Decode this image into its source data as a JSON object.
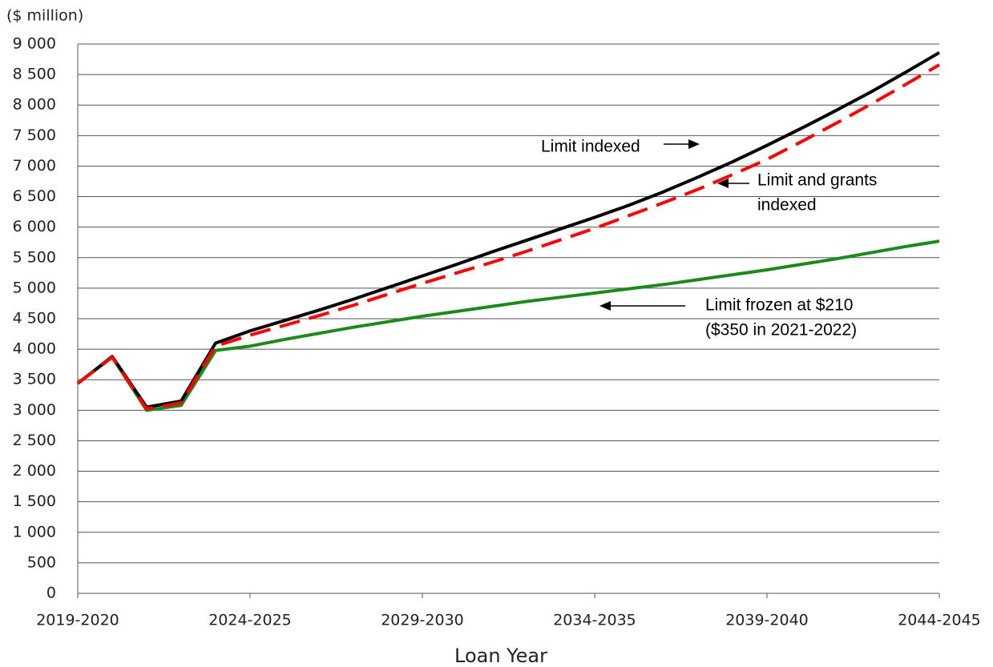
{
  "chart_data": {
    "type": "line",
    "y_label": "($ million)",
    "x_label": "Loan Year",
    "categories": [
      "2019-2020",
      null,
      null,
      null,
      null,
      "2024-2025",
      null,
      null,
      null,
      null,
      "2029-2030",
      null,
      null,
      null,
      null,
      "2034-2035",
      null,
      null,
      null,
      null,
      "2039-2040",
      null,
      null,
      null,
      null,
      "2044-2045"
    ],
    "ylim": [
      0,
      9000
    ],
    "yticks": [
      0,
      500,
      {
        "value": 1000,
        "label": "1 000"
      },
      {
        "value": 1500,
        "label": "1 500"
      },
      {
        "value": 2000,
        "label": "2 000"
      },
      {
        "value": 2500,
        "label": "2 500"
      },
      {
        "value": 3000,
        "label": "3 000"
      },
      {
        "value": 3500,
        "label": "3 500"
      },
      {
        "value": 4000,
        "label": "4 000"
      },
      {
        "value": 4500,
        "label": "4 500"
      },
      {
        "value": 5000,
        "label": "5 000"
      },
      {
        "value": 5500,
        "label": "5 500"
      },
      {
        "value": 6000,
        "label": "6 000"
      },
      {
        "value": 6500,
        "label": "6 500"
      },
      {
        "value": 7000,
        "label": "7 000"
      },
      {
        "value": 7500,
        "label": "7 500"
      },
      {
        "value": 8000,
        "label": "8 000"
      },
      {
        "value": 8500,
        "label": "8 500"
      },
      {
        "value": 9000,
        "label": "9 000"
      }
    ],
    "grid": true,
    "series": [
      {
        "color": "#1a8a1a",
        "dashed": false,
        "values": [
          3440,
          3870,
          3000,
          3080,
          3980,
          4050,
          4160,
          4260,
          4360,
          4450,
          4540,
          4620,
          4700,
          4780,
          4850,
          4920,
          4990,
          5060,
          5140,
          5220,
          5300,
          5390,
          5480,
          5580,
          5680,
          5770
        ]
      },
      {
        "color": "#000000",
        "dashed": false,
        "values": [
          3440,
          3880,
          3050,
          3150,
          4100,
          4300,
          4470,
          4640,
          4820,
          5010,
          5200,
          5390,
          5590,
          5780,
          5970,
          6160,
          6360,
          6580,
          6820,
          7070,
          7340,
          7620,
          7910,
          8210,
          8530,
          8860
        ]
      },
      {
        "color": "#ff0000",
        "dashed": true,
        "values": [
          3440,
          3870,
          3020,
          3120,
          4050,
          4230,
          4390,
          4550,
          4720,
          4900,
          5080,
          5250,
          5420,
          5600,
          5790,
          5980,
          6190,
          6400,
          6620,
          6860,
          7110,
          7400,
          7700,
          8010,
          8330,
          8660
        ]
      }
    ],
    "annotations": [
      {
        "lines": [
          "Limit indexed"
        ]
      },
      {
        "lines": [
          "Limit and grants",
          "indexed"
        ]
      },
      {
        "lines": [
          "Limit frozen at $210",
          "($350 in 2021-2022)"
        ]
      }
    ]
  }
}
